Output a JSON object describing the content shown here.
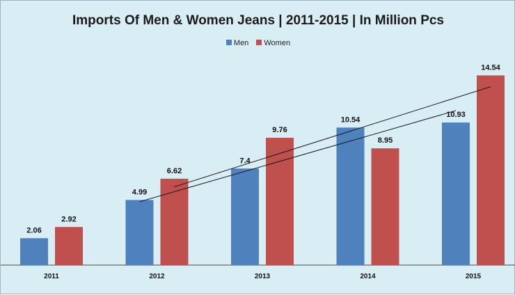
{
  "chart_data": {
    "type": "bar",
    "title": "Imports Of Men & Women Jeans | 2011-2015 | In Million Pcs",
    "categories": [
      "2011",
      "2012",
      "2013",
      "2014",
      "2015"
    ],
    "series": [
      {
        "name": "Men",
        "color": "#4f81bd",
        "values": [
          2.06,
          4.99,
          7.4,
          10.54,
          10.93
        ],
        "labels": [
          "2.06",
          "4.99",
          "7.4",
          "10.54",
          "10.93"
        ]
      },
      {
        "name": "Women",
        "color": "#c0504d",
        "values": [
          2.92,
          6.62,
          9.76,
          8.95,
          14.54
        ],
        "labels": [
          "2.92",
          "6.62",
          "9.76",
          "8.95",
          "14.54"
        ]
      }
    ],
    "trendlines": "linear trendline for each series",
    "legend_position": "top",
    "grid": false,
    "ylim": [
      0,
      16
    ]
  }
}
